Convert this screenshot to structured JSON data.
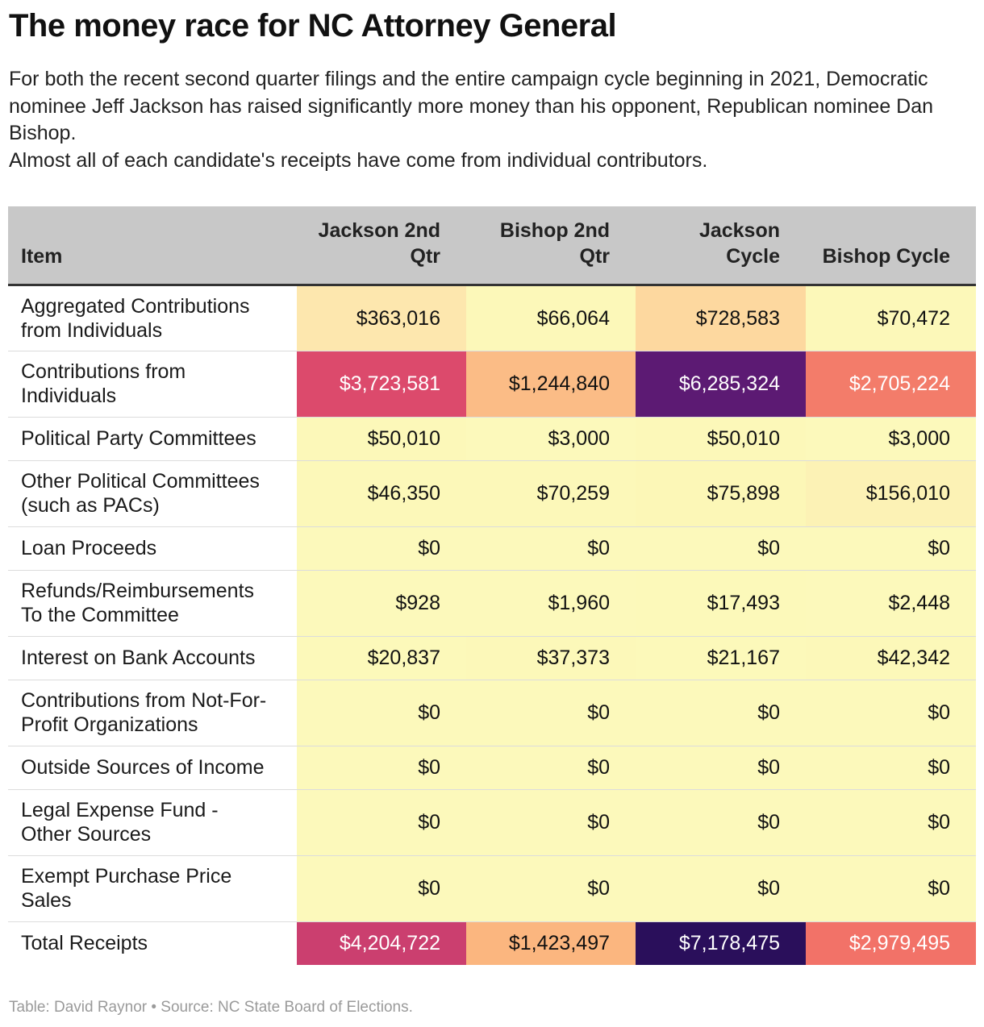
{
  "title": "The money race for NC Attorney General",
  "subtitle": [
    "For both the recent second quarter filings and the entire campaign cycle beginning in 2021, Democratic nominee Jeff Jackson has raised significantly more money than his opponent, Republican nominee Dan Bishop.",
    "Almost all of each candidate's receipts have come from individual contributors."
  ],
  "footer": "Table: David Raynor • Source: NC State Board of Elections.",
  "chart_data": {
    "type": "table",
    "columns": [
      "Item",
      "Jackson 2nd Qtr",
      "Bishop 2nd Qtr",
      "Jackson Cycle",
      "Bishop Cycle"
    ],
    "rows": [
      {
        "item": "Aggregated Contributions from Individuals",
        "values": [
          "$363,016",
          "$66,064",
          "$728,583",
          "$70,472"
        ],
        "fills": [
          "#fde7ae",
          "#fcf8b9",
          "#fdd89f",
          "#fcf8b9"
        ],
        "text": [
          "#111111",
          "#111111",
          "#111111",
          "#111111"
        ]
      },
      {
        "item": "Contributions from Individuals",
        "values": [
          "$3,723,581",
          "$1,244,840",
          "$6,285,324",
          "$2,705,224"
        ],
        "fills": [
          "#dc4a6c",
          "#fbbc86",
          "#5c1a73",
          "#f37c6a"
        ],
        "text": [
          "#ffffff",
          "#111111",
          "#ffffff",
          "#ffffff"
        ]
      },
      {
        "item": "Political Party Committees",
        "values": [
          "$50,010",
          "$3,000",
          "$50,010",
          "$3,000"
        ],
        "fills": [
          "#fcf8b9",
          "#fcf9bb",
          "#fcf8b9",
          "#fcf9bb"
        ],
        "text": [
          "#111111",
          "#111111",
          "#111111",
          "#111111"
        ]
      },
      {
        "item": "Other Political Committees (such as PACs)",
        "values": [
          "$46,350",
          "$70,259",
          "$75,898",
          "$156,010"
        ],
        "fills": [
          "#fcf8b9",
          "#fcf8b9",
          "#fcf7b7",
          "#fcf2b5"
        ],
        "text": [
          "#111111",
          "#111111",
          "#111111",
          "#111111"
        ]
      },
      {
        "item": "Loan Proceeds",
        "values": [
          "$0",
          "$0",
          "$0",
          "$0"
        ],
        "fills": [
          "#fcf9bb",
          "#fcf9bb",
          "#fcf9bb",
          "#fcf9bb"
        ],
        "text": [
          "#111111",
          "#111111",
          "#111111",
          "#111111"
        ]
      },
      {
        "item": "Refunds/Reimbursements To the Committee",
        "values": [
          "$928",
          "$1,960",
          "$17,493",
          "$2,448"
        ],
        "fills": [
          "#fcf9bb",
          "#fcf9bb",
          "#fcf9ba",
          "#fcf9bb"
        ],
        "text": [
          "#111111",
          "#111111",
          "#111111",
          "#111111"
        ]
      },
      {
        "item": "Interest on Bank Accounts",
        "values": [
          "$20,837",
          "$37,373",
          "$21,167",
          "$42,342"
        ],
        "fills": [
          "#fcf9ba",
          "#fcf8b9",
          "#fcf9ba",
          "#fcf8b9"
        ],
        "text": [
          "#111111",
          "#111111",
          "#111111",
          "#111111"
        ]
      },
      {
        "item": "Contributions from Not-For-Profit Organizations",
        "values": [
          "$0",
          "$0",
          "$0",
          "$0"
        ],
        "fills": [
          "#fcf9bb",
          "#fcf9bb",
          "#fcf9bb",
          "#fcf9bb"
        ],
        "text": [
          "#111111",
          "#111111",
          "#111111",
          "#111111"
        ]
      },
      {
        "item": "Outside Sources of Income",
        "values": [
          "$0",
          "$0",
          "$0",
          "$0"
        ],
        "fills": [
          "#fcf9bb",
          "#fcf9bb",
          "#fcf9bb",
          "#fcf9bb"
        ],
        "text": [
          "#111111",
          "#111111",
          "#111111",
          "#111111"
        ]
      },
      {
        "item": "Legal Expense Fund - Other Sources",
        "values": [
          "$0",
          "$0",
          "$0",
          "$0"
        ],
        "fills": [
          "#fcf9bb",
          "#fcf9bb",
          "#fcf9bb",
          "#fcf9bb"
        ],
        "text": [
          "#111111",
          "#111111",
          "#111111",
          "#111111"
        ]
      },
      {
        "item": "Exempt Purchase Price Sales",
        "values": [
          "$0",
          "$0",
          "$0",
          "$0"
        ],
        "fills": [
          "#fcf9bb",
          "#fcf9bb",
          "#fcf9bb",
          "#fcf9bb"
        ],
        "text": [
          "#111111",
          "#111111",
          "#111111",
          "#111111"
        ]
      },
      {
        "item": "Total Receipts",
        "values": [
          "$4,204,722",
          "$1,423,497",
          "$7,178,475",
          "$2,979,495"
        ],
        "fills": [
          "#cb3f6f",
          "#fbb67f",
          "#2a0f5b",
          "#f27268"
        ],
        "text": [
          "#ffffff",
          "#111111",
          "#ffffff",
          "#ffffff"
        ]
      }
    ]
  }
}
